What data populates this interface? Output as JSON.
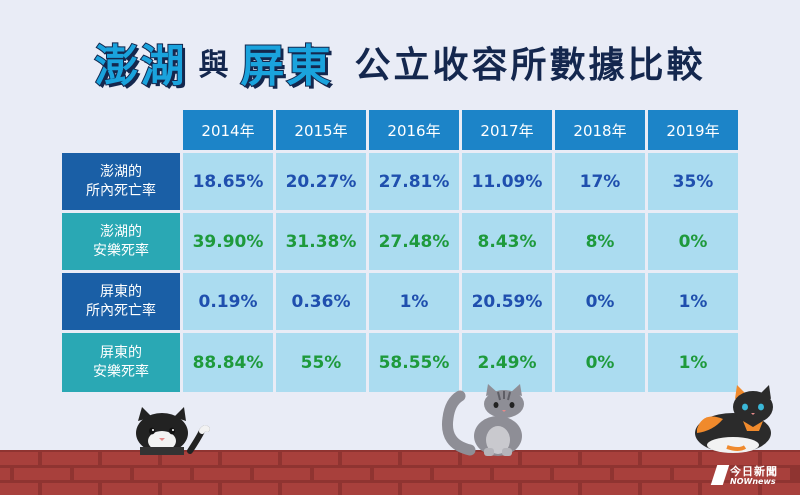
{
  "title": {
    "part1": "澎湖",
    "connector": "與",
    "part2": "屏東",
    "rest": "公立收容所數據比較"
  },
  "chart_data": {
    "type": "table",
    "columns": [
      "2014年",
      "2015年",
      "2016年",
      "2017年",
      "2018年",
      "2019年"
    ],
    "rows": [
      {
        "label_line1": "澎湖的",
        "label_line2": "所內死亡率",
        "values": [
          "18.65%",
          "20.27%",
          "27.81%",
          "11.09%",
          "17%",
          "35%"
        ]
      },
      {
        "label_line1": "澎湖的",
        "label_line2": "安樂死率",
        "values": [
          "39.90%",
          "31.38%",
          "27.48%",
          "8.43%",
          "8%",
          "0%"
        ]
      },
      {
        "label_line1": "屏東的",
        "label_line2": "所內死亡率",
        "values": [
          "0.19%",
          "0.36%",
          "1%",
          "20.59%",
          "0%",
          "1%"
        ]
      },
      {
        "label_line1": "屏東的",
        "label_line2": "安樂死率",
        "values": [
          "88.84%",
          "55%",
          "58.55%",
          "2.49%",
          "0%",
          "1%"
        ]
      }
    ]
  },
  "brand": {
    "name": "今日新聞",
    "sub": "NOWnews"
  },
  "colors": {
    "background": "#e9ecf6",
    "title_highlight": "#1aa3dd",
    "title_dark": "#14274e",
    "header_bg": "#1c84c8",
    "row_header_dark": "#1a5fa6",
    "row_header_teal": "#2aa8b4",
    "cell_bg": "#abdcf0",
    "death_rate_text": "#1f4fae",
    "euthanasia_rate_text": "#1e9a3c",
    "brick": "#a8403c"
  },
  "icons": [
    "tuxedo-cat-icon",
    "gray-tabby-cat-icon",
    "calico-cat-icon",
    "brick-wall",
    "nownews-logo-icon"
  ]
}
